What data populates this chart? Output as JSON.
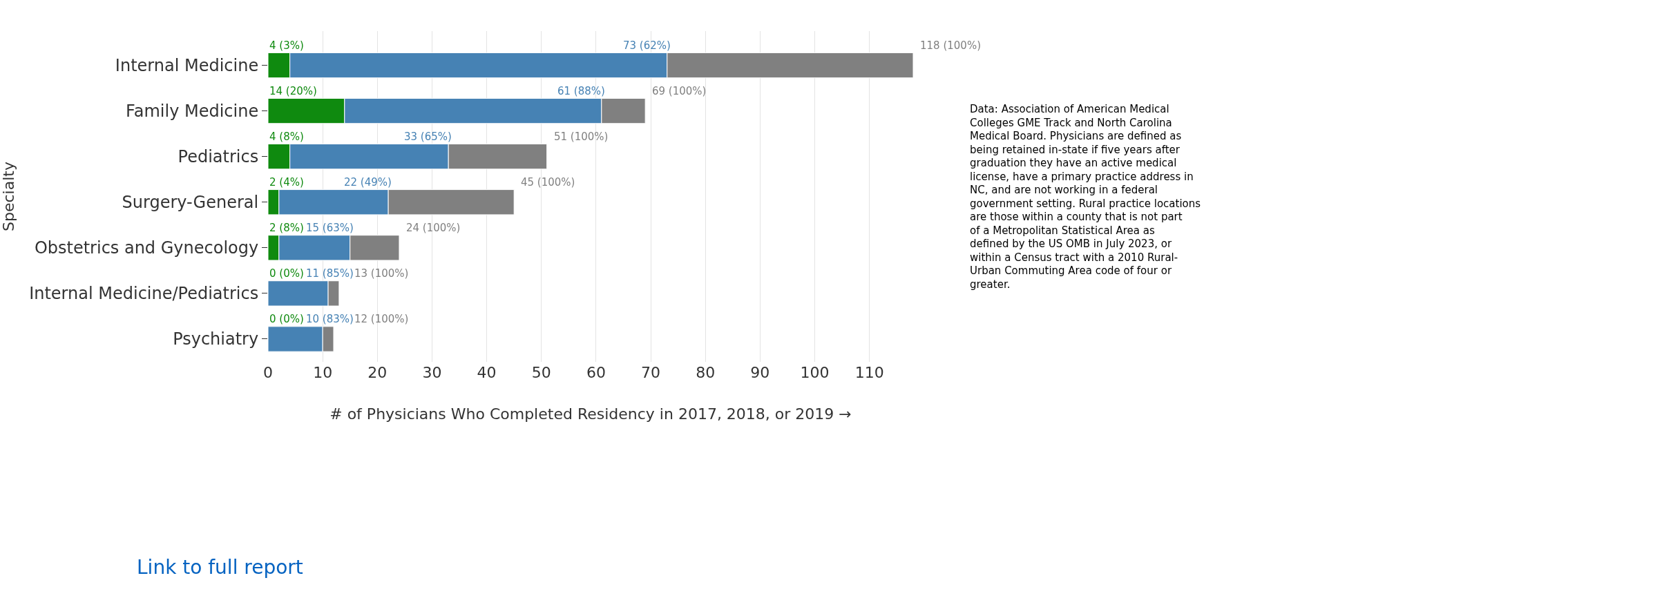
{
  "chart_data": {
    "type": "bar",
    "orientation": "horizontal",
    "stacked": true,
    "xlabel": "# of Physicians Who Completed Residency in 2017, 2018, or 2019 →",
    "ylabel": "Specialty",
    "categories": [
      "Internal Medicine",
      "Family Medicine",
      "Pediatrics",
      "Surgery-General",
      "Obstetrics and Gynecology",
      "Internal Medicine/Pediatrics",
      "Psychiatry"
    ],
    "series": [
      {
        "color": "#0f8a0f",
        "values": [
          4,
          14,
          4,
          2,
          2,
          0,
          0
        ]
      },
      {
        "color": "#4682b4",
        "values": [
          69,
          47,
          29,
          20,
          13,
          11,
          10
        ]
      },
      {
        "color": "#808080",
        "values": [
          45,
          8,
          18,
          23,
          9,
          2,
          2
        ]
      }
    ],
    "xlim": [
      0,
      118
    ],
    "xticks": [
      0,
      10,
      20,
      30,
      40,
      50,
      60,
      70,
      80,
      90,
      100,
      110
    ],
    "grid": "x",
    "annotations": [
      "Link to full report",
      "Data: Association of American Medical Colleges GME Track and North Carolina Medical Board. Physicians are defined as being retained in-state if five years after graduation they have an active medical license, have a primary practice address in NC, and are not working in a federal government setting. Rural practice locations are those within a county that is not part of a Metropolitan Statistical Area as defined by the US OMB in July 2023, or within a Census tract with a 2010 Rural-Urban Commuting Area code of four or greater.",
      {
        "text": "4 (3%)",
        "x": 4,
        "y": "Internal Medicine"
      },
      {
        "text": "73 (62%)",
        "x": 73,
        "y": "Internal Medicine"
      },
      {
        "text": "118 (100%)",
        "x": 118,
        "y": "Internal Medicine"
      },
      {
        "text": "14 (20%)",
        "x": 14,
        "y": "Family Medicine"
      },
      {
        "text": "61 (88%)",
        "x": 61,
        "y": "Family Medicine"
      },
      {
        "text": "69 (100%)",
        "x": 69,
        "y": "Family Medicine"
      },
      {
        "text": "4 (8%)",
        "x": 4,
        "y": "Pediatrics"
      },
      {
        "text": "33 (65%)",
        "x": 33,
        "y": "Pediatrics"
      },
      {
        "text": "51 (100%)",
        "x": 51,
        "y": "Pediatrics"
      },
      {
        "text": "2 (4%)",
        "x": 2,
        "y": "Surgery-General"
      },
      {
        "text": "22 (49%)",
        "x": 22,
        "y": "Surgery-General"
      },
      {
        "text": "45 (100%)",
        "x": 45,
        "y": "Surgery-General"
      },
      {
        "text": "2 (8%)",
        "x": 2,
        "y": "Obstetrics and Gynecology"
      },
      {
        "text": "15 (63%)",
        "x": 15,
        "y": "Obstetrics and Gynecology"
      },
      {
        "text": "24 (100%)",
        "x": 24,
        "y": "Obstetrics and Gynecology"
      },
      {
        "text": "0 (0%)",
        "x": 0,
        "y": "Internal Medicine/Pediatrics"
      },
      {
        "text": "11 (85%)",
        "x": 11,
        "y": "Internal Medicine/Pediatrics"
      },
      {
        "text": "13 (100%)",
        "x": 13,
        "y": "Internal Medicine/Pediatrics"
      },
      {
        "text": "0 (0%)",
        "x": 0,
        "y": "Psychiatry"
      },
      {
        "text": "10 (83%)",
        "x": 10,
        "y": "Psychiatry"
      },
      {
        "text": "12 (100%)",
        "x": 12,
        "y": "Psychiatry"
      }
    ]
  }
}
